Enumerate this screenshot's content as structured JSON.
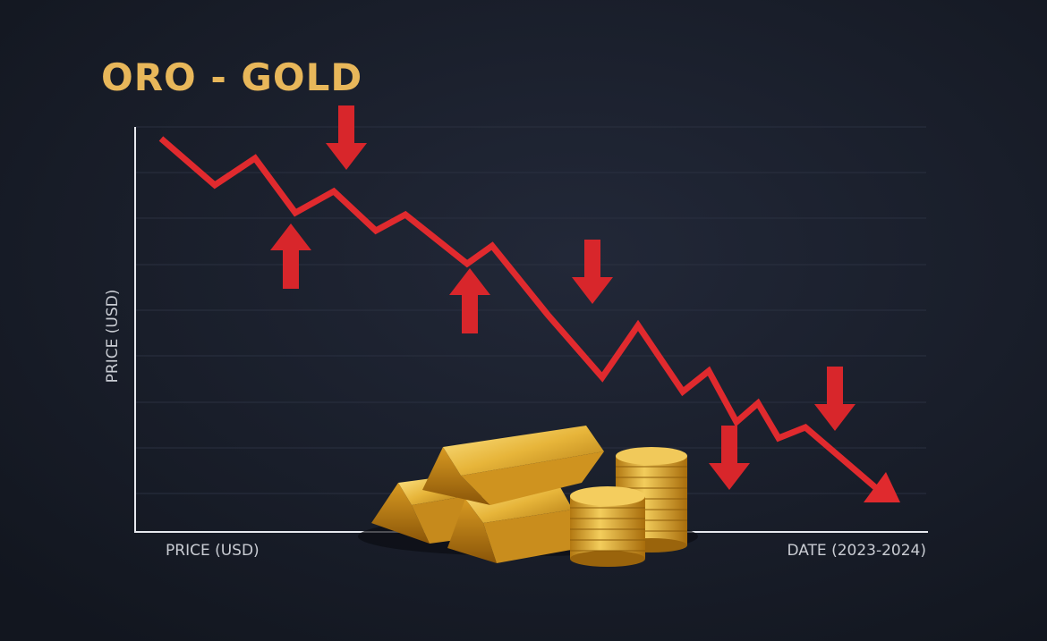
{
  "title": "ORO - GOLD",
  "y_axis_label": "PRICE (USD)",
  "x_axis_labels": [
    "PRICE (USD)",
    "DATE (2023-2024)"
  ]
}
